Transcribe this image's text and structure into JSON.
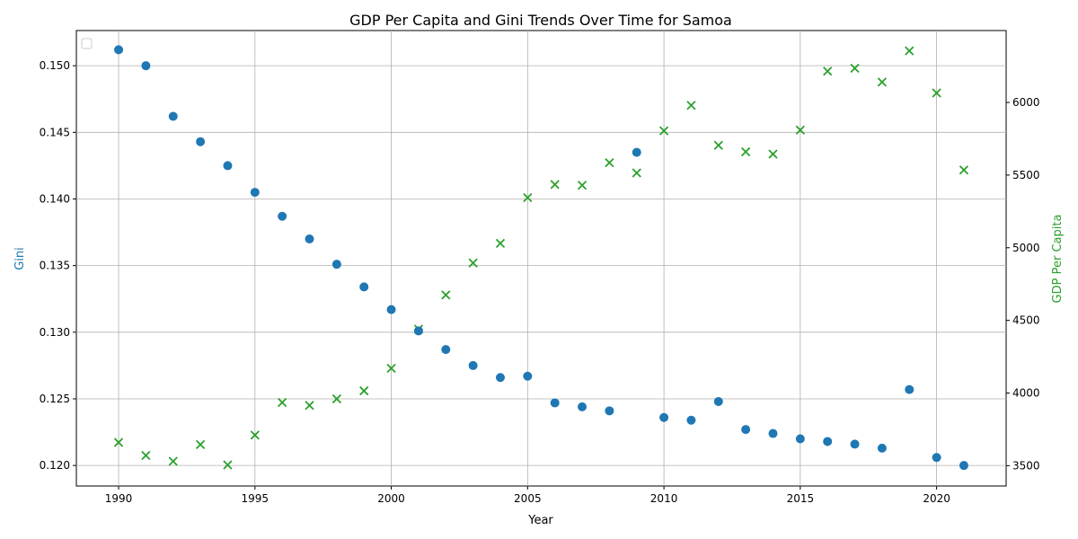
{
  "chart_data": {
    "type": "scatter",
    "title": "GDP Per Capita and Gini Trends Over Time for Samoa",
    "xlabel": "Year",
    "ylabel_left": "Gini",
    "ylabel_right": "GDP Per Capita",
    "xlim": [
      1988.45,
      2022.55
    ],
    "ylim_left": [
      0.11846,
      0.15264
    ],
    "ylim_right": [
      3360,
      6495
    ],
    "x_ticks": [
      1990,
      1995,
      2000,
      2005,
      2010,
      2015,
      2020
    ],
    "y_left_ticks": [
      "0.120",
      "0.125",
      "0.130",
      "0.135",
      "0.140",
      "0.145",
      "0.150"
    ],
    "y_right_ticks": [
      3500,
      4000,
      4500,
      5000,
      5500,
      6000
    ],
    "grid": true,
    "legend": "upper-left (empty)",
    "colors": {
      "gini": "#1f77b4",
      "gdp": "#2ca02c"
    },
    "x": [
      1990,
      1991,
      1992,
      1993,
      1994,
      1995,
      1996,
      1997,
      1998,
      1999,
      2000,
      2001,
      2002,
      2003,
      2004,
      2005,
      2006,
      2007,
      2008,
      2009,
      2010,
      2011,
      2012,
      2013,
      2014,
      2015,
      2016,
      2017,
      2018,
      2019,
      2020,
      2021
    ],
    "gini": [
      0.1512,
      0.15,
      0.1462,
      0.1443,
      0.1425,
      0.1405,
      0.1387,
      0.137,
      0.1351,
      0.1334,
      0.1317,
      0.1301,
      0.1287,
      0.1275,
      0.1266,
      0.1267,
      0.1247,
      0.1244,
      0.1241,
      0.1435,
      0.1236,
      0.1234,
      0.1248,
      0.1227,
      0.1224,
      0.122,
      0.1218,
      0.1216,
      0.1213,
      0.1257,
      0.1206,
      0.12
    ],
    "gdp_per_capita": [
      3660,
      3570,
      3530,
      3645,
      3505,
      3710,
      3935,
      3915,
      3960,
      4015,
      4170,
      4440,
      4675,
      4895,
      5030,
      5345,
      5435,
      5430,
      5585,
      5515,
      5805,
      5980,
      5705,
      5660,
      5645,
      5810,
      6215,
      6235,
      6140,
      6355,
      6065,
      5535
    ]
  }
}
